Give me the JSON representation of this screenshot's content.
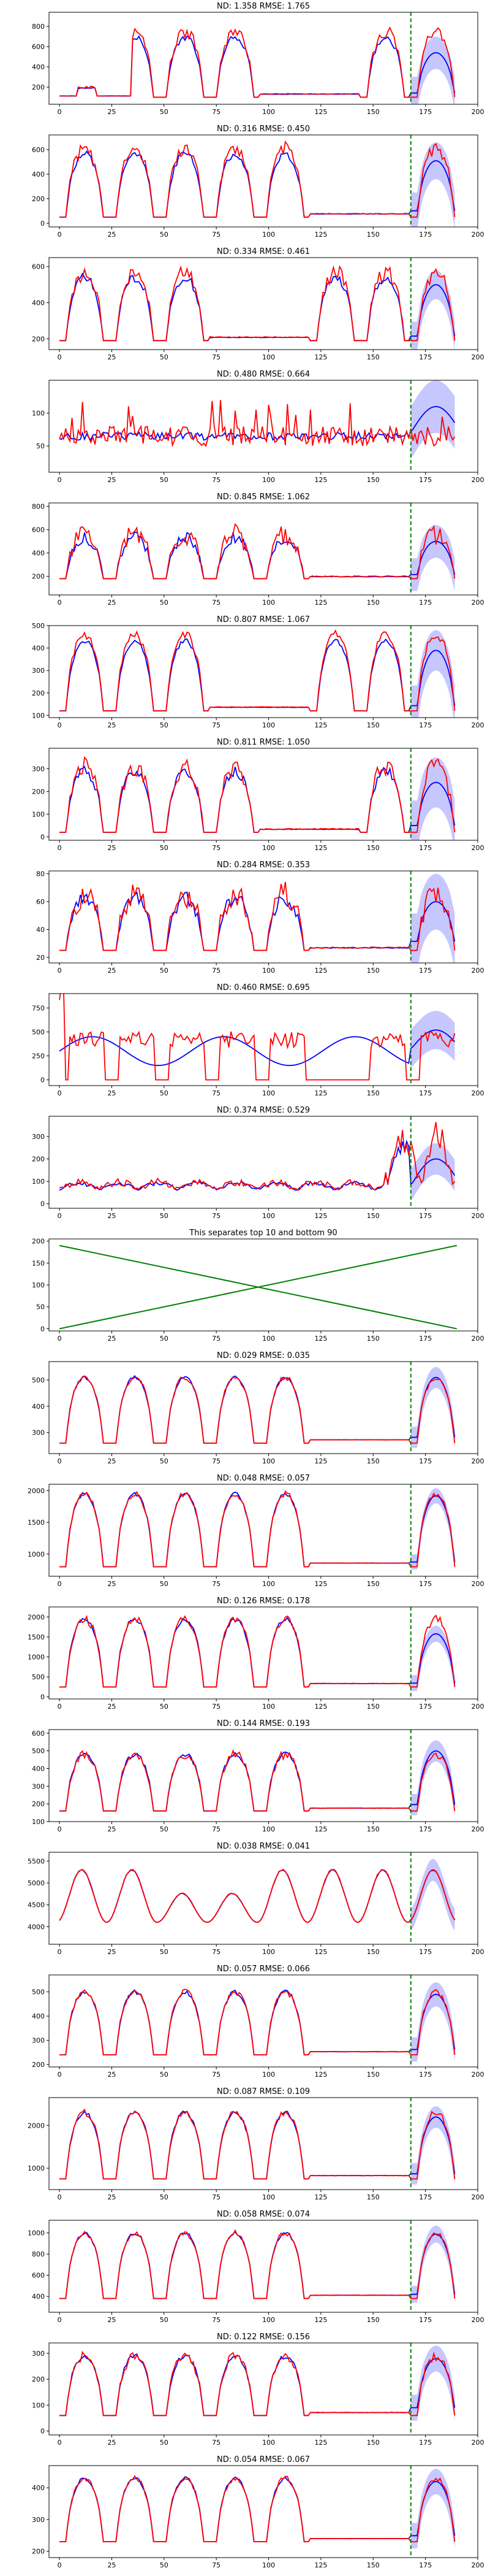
{
  "figure": {
    "x_ticks": [
      0,
      25,
      50,
      75,
      100,
      125,
      150,
      175,
      200
    ],
    "x_range": [
      -5,
      200
    ],
    "forecast_start": 168,
    "colors": {
      "actual": "#ff0000",
      "prediction": "#0000ff",
      "band": "#0000ff",
      "separator": "#008000",
      "forecast_line": "#008000"
    }
  },
  "chart_data": [
    {
      "type": "line",
      "title": "ND: 1.358 RMSE: 1.765",
      "ylim": [
        30,
        940
      ],
      "y_ticks": [
        200,
        400,
        600,
        800
      ],
      "series_params": {
        "kind": "daily",
        "base": 100,
        "amp": 650,
        "startDay": 1,
        "noise": 0.1,
        "predAmp": 420,
        "predBase": 120,
        "bandW": 160,
        "seed": 1,
        "earlyBump": true
      }
    },
    {
      "type": "line",
      "title": "ND: 0.316 RMSE: 0.450",
      "ylim": [
        -30,
        720
      ],
      "y_ticks": [
        0,
        200,
        400,
        600
      ],
      "series_params": {
        "kind": "daily",
        "base": 50,
        "amp": 560,
        "startDay": 0,
        "noise": 0.1,
        "predAmp": 430,
        "predBase": 80,
        "bandW": 150,
        "seed": 2
      }
    },
    {
      "type": "line",
      "title": "ND: 0.334 RMSE: 0.461",
      "ylim": [
        140,
        650
      ],
      "y_ticks": [
        200,
        400,
        600
      ],
      "series_params": {
        "kind": "daily",
        "base": 190,
        "amp": 380,
        "startDay": 2,
        "noise": 0.12,
        "predAmp": 300,
        "predBase": 200,
        "bandW": 80,
        "seed": 3
      }
    },
    {
      "type": "line",
      "title": "ND: 0.480 RMSE: 0.664",
      "ylim": [
        10,
        150
      ],
      "y_ticks": [
        50,
        100
      ],
      "series_params": {
        "kind": "noisy",
        "base": 65,
        "amp": 15,
        "noise": 0.25,
        "predAmp": 40,
        "predBase": 70,
        "bandW": 40,
        "seed": 4
      }
    },
    {
      "type": "line",
      "title": "ND: 0.845 RMSE: 1.062",
      "ylim": [
        40,
        830
      ],
      "y_ticks": [
        200,
        400,
        600,
        800
      ],
      "series_params": {
        "kind": "daily",
        "base": 180,
        "amp": 380,
        "startDay": 0,
        "noise": 0.25,
        "predAmp": 300,
        "predBase": 200,
        "bandW": 140,
        "seed": 5
      }
    },
    {
      "type": "line",
      "title": "ND: 0.807 RMSE: 1.067",
      "ylim": [
        90,
        500
      ],
      "y_ticks": [
        100,
        200,
        300,
        400,
        500
      ],
      "series_params": {
        "kind": "daily",
        "base": 120,
        "amp": 340,
        "startDay": 2,
        "noise": 0.06,
        "predAmp": 260,
        "predBase": 130,
        "bandW": 90,
        "seed": 6
      }
    },
    {
      "type": "line",
      "title": "ND: 0.811 RMSE: 1.050",
      "ylim": [
        -15,
        390
      ],
      "y_ticks": [
        0,
        100,
        200,
        300
      ],
      "series_params": {
        "kind": "daily",
        "base": 20,
        "amp": 290,
        "startDay": 1,
        "noise": 0.15,
        "predAmp": 200,
        "predBase": 40,
        "bandW": 110,
        "seed": 7
      }
    },
    {
      "type": "line",
      "title": "ND: 0.284 RMSE: 0.353",
      "ylim": [
        16,
        82
      ],
      "y_ticks": [
        20,
        40,
        60,
        80
      ],
      "series_params": {
        "kind": "daily",
        "base": 25,
        "amp": 40,
        "startDay": 0,
        "noise": 0.25,
        "predAmp": 30,
        "predBase": 30,
        "bandW": 20,
        "seed": 8
      }
    },
    {
      "type": "line",
      "title": "ND: 0.460 RMSE: 0.695",
      "ylim": [
        -60,
        900
      ],
      "y_ticks": [
        0,
        250,
        500,
        750
      ],
      "series_params": {
        "kind": "square",
        "base": 0,
        "amp": 420,
        "noise": 0.2,
        "predAmp": 200,
        "predBase": 320,
        "bandW": 200,
        "seed": 9
      }
    },
    {
      "type": "line",
      "title": "ND: 0.374 RMSE: 0.529",
      "ylim": [
        -20,
        390
      ],
      "y_ticks": [
        0,
        100,
        200,
        300
      ],
      "series_params": {
        "kind": "spiky",
        "base": 40,
        "amp": 80,
        "noise": 0.3,
        "predAmp": 120,
        "predBase": 80,
        "bandW": 70,
        "seed": 10
      }
    },
    {
      "type": "line",
      "title": "This separates top 10 and bottom 90",
      "ylim": [
        -5,
        205
      ],
      "y_ticks": [
        0,
        50,
        100,
        150,
        200
      ],
      "separator": true,
      "series": [
        {
          "x": [
            0,
            190
          ],
          "values": [
            0,
            190
          ]
        },
        {
          "x": [
            0,
            190
          ],
          "values": [
            190,
            0
          ]
        }
      ]
    },
    {
      "type": "line",
      "title": "ND: 0.029 RMSE: 0.035",
      "ylim": [
        220,
        570
      ],
      "y_ticks": [
        300,
        400,
        500
      ],
      "series_params": {
        "kind": "daily",
        "base": 260,
        "amp": 250,
        "startDay": 0,
        "noise": 0.04,
        "predAmp": 240,
        "predBase": 270,
        "bandW": 40,
        "seed": 12,
        "good": true
      }
    },
    {
      "type": "line",
      "title": "ND: 0.048 RMSE: 0.057",
      "ylim": [
        650,
        2100
      ],
      "y_ticks": [
        1000,
        1500,
        2000
      ],
      "series_params": {
        "kind": "daily",
        "base": 800,
        "amp": 1150,
        "startDay": 0,
        "noise": 0.04,
        "predAmp": 1100,
        "predBase": 820,
        "bandW": 120,
        "seed": 13,
        "good": true
      }
    },
    {
      "type": "line",
      "title": "ND: 0.126 RMSE: 0.178",
      "ylim": [
        -50,
        2250
      ],
      "y_ticks": [
        0,
        500,
        1000,
        1500,
        2000
      ],
      "series_params": {
        "kind": "daily",
        "base": 250,
        "amp": 1700,
        "startDay": 0,
        "noise": 0.06,
        "predAmp": 1300,
        "predBase": 280,
        "bandW": 200,
        "seed": 14,
        "good": true
      }
    },
    {
      "type": "line",
      "title": "ND: 0.144 RMSE: 0.193",
      "ylim": [
        100,
        620
      ],
      "y_ticks": [
        100,
        200,
        300,
        400,
        500,
        600
      ],
      "series_params": {
        "kind": "daily",
        "base": 160,
        "amp": 320,
        "startDay": 0,
        "noise": 0.08,
        "predAmp": 320,
        "predBase": 180,
        "bandW": 60,
        "seed": 15,
        "good": true
      }
    },
    {
      "type": "line",
      "title": "ND: 0.038 RMSE: 0.041",
      "ylim": [
        3600,
        5700
      ],
      "y_ticks": [
        4000,
        4500,
        5000,
        5500
      ],
      "series_params": {
        "kind": "smooth",
        "base": 4100,
        "amp": 1200,
        "startDay": 0,
        "noise": 0.02,
        "predAmp": 1200,
        "predBase": 4100,
        "bandW": 250,
        "seed": 16,
        "good": true
      }
    },
    {
      "type": "line",
      "title": "ND: 0.057 RMSE: 0.066",
      "ylim": [
        190,
        570
      ],
      "y_ticks": [
        200,
        300,
        400,
        500
      ],
      "series_params": {
        "kind": "daily",
        "base": 240,
        "amp": 260,
        "startDay": 0,
        "noise": 0.05,
        "predAmp": 240,
        "predBase": 250,
        "bandW": 50,
        "seed": 17,
        "good": true
      }
    },
    {
      "type": "line",
      "title": "ND: 0.087 RMSE: 0.109",
      "ylim": [
        500,
        2650
      ],
      "y_ticks": [
        1000,
        2000
      ],
      "series_params": {
        "kind": "daily",
        "base": 750,
        "amp": 1550,
        "startDay": 0,
        "noise": 0.05,
        "predAmp": 1400,
        "predBase": 800,
        "bandW": 250,
        "seed": 18,
        "good": true
      }
    },
    {
      "type": "line",
      "title": "ND: 0.058 RMSE: 0.074",
      "ylim": [
        250,
        1120
      ],
      "y_ticks": [
        400,
        600,
        800,
        1000
      ],
      "series_params": {
        "kind": "daily",
        "base": 380,
        "amp": 620,
        "startDay": 0,
        "noise": 0.04,
        "predAmp": 600,
        "predBase": 390,
        "bandW": 80,
        "seed": 19,
        "good": true
      }
    },
    {
      "type": "line",
      "title": "ND: 0.122 RMSE: 0.156",
      "ylim": [
        -15,
        340
      ],
      "y_ticks": [
        0,
        100,
        200,
        300
      ],
      "series_params": {
        "kind": "daily",
        "base": 60,
        "amp": 230,
        "startDay": 0,
        "noise": 0.08,
        "predAmp": 200,
        "predBase": 80,
        "bandW": 50,
        "seed": 20,
        "good": true
      }
    },
    {
      "type": "line",
      "title": "ND: 0.054 RMSE: 0.067",
      "ylim": [
        180,
        470
      ],
      "y_ticks": [
        200,
        300,
        400
      ],
      "series_params": {
        "kind": "daily",
        "base": 230,
        "amp": 200,
        "startDay": 0,
        "noise": 0.04,
        "predAmp": 180,
        "predBase": 240,
        "bandW": 40,
        "seed": 21,
        "good": true
      }
    }
  ]
}
